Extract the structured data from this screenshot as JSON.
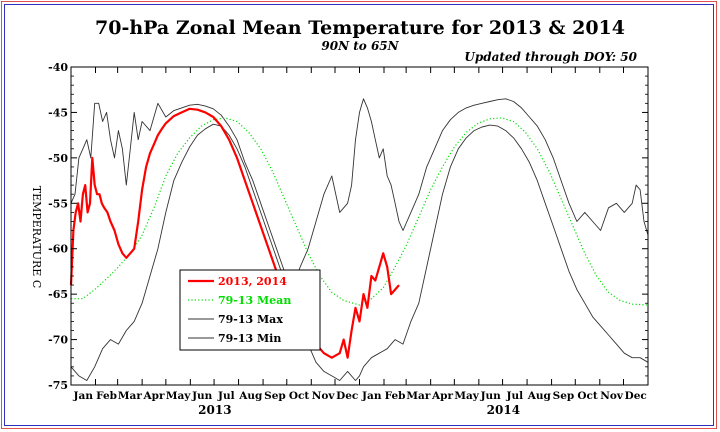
{
  "chart_data": {
    "type": "line",
    "title": "70-hPa Zonal Mean Temperature for 2013 & 2014",
    "subtitle": "90N to 65N",
    "note": "Updated through DOY:  50",
    "ylabel": "TEMPERATURE C",
    "ylim": [
      -75,
      -40
    ],
    "yticks": [
      "-40",
      "-45",
      "-50",
      "-55",
      "-60",
      "-65",
      "-70",
      "-75"
    ],
    "xlim": [
      0,
      730
    ],
    "month_labels": [
      "Jan",
      "Feb",
      "Mar",
      "Apr",
      "May",
      "Jun",
      "Jul",
      "Aug",
      "Sep",
      "Oct",
      "Nov",
      "Dec",
      "Jan",
      "Feb",
      "Mar",
      "Apr",
      "May",
      "Jun",
      "Jul",
      "Aug",
      "Sep",
      "Oct",
      "Nov",
      "Dec"
    ],
    "years": [
      {
        "label": "2013",
        "center": 182
      },
      {
        "label": "2014",
        "center": 547
      }
    ],
    "legend": {
      "position": "lower-left"
    },
    "series": [
      {
        "name": "2013, 2014",
        "color": "#ff0000",
        "style": "solid",
        "width": 2.2,
        "x": [
          0,
          3,
          6,
          9,
          12,
          15,
          18,
          21,
          24,
          27,
          30,
          33,
          36,
          39,
          42,
          46,
          50,
          55,
          60,
          65,
          70,
          75,
          80,
          85,
          90,
          95,
          100,
          105,
          110,
          115,
          120,
          125,
          130,
          135,
          140,
          145,
          150,
          160,
          170,
          180,
          190,
          200,
          210,
          220,
          230,
          240,
          250,
          260,
          270,
          280,
          290,
          300,
          310,
          320,
          330,
          340,
          345,
          350,
          355,
          360,
          365,
          370,
          375,
          380,
          385,
          390,
          395,
          400,
          405,
          410,
          415
        ],
        "y": [
          -64,
          -58,
          -56,
          -55,
          -57,
          -54,
          -53,
          -56,
          -55,
          -50,
          -53,
          -54,
          -54,
          -55,
          -55.5,
          -56,
          -57,
          -58,
          -59.5,
          -60.5,
          -61,
          -60.5,
          -60,
          -57,
          -53.5,
          -51,
          -49.5,
          -48.5,
          -47.5,
          -46.8,
          -46.2,
          -45.8,
          -45.4,
          -45.2,
          -45,
          -44.8,
          -44.6,
          -44.7,
          -45,
          -45.5,
          -46.5,
          -48,
          -50,
          -52.5,
          -55,
          -57.5,
          -60,
          -62.5,
          -64.5,
          -66.5,
          -68,
          -69.5,
          -70.5,
          -71.5,
          -72,
          -71.5,
          -70,
          -72,
          -69,
          -66.5,
          -68,
          -65,
          -66.5,
          -63,
          -63.5,
          -62,
          -60.5,
          -62,
          -65,
          -64.5,
          -64
        ]
      },
      {
        "name": "79-13 Mean",
        "color": "#00dd00",
        "style": "dotted",
        "width": 1.2,
        "x": [
          0,
          15,
          30,
          45,
          60,
          75,
          90,
          105,
          120,
          135,
          150,
          165,
          180,
          195,
          210,
          225,
          240,
          255,
          270,
          285,
          300,
          315,
          330,
          345,
          365,
          380,
          395,
          410,
          425,
          440,
          455,
          470,
          485,
          500,
          515,
          530,
          545,
          560,
          575,
          590,
          605,
          620,
          635,
          650,
          665,
          680,
          695,
          710,
          730
        ],
        "y": [
          -65.5,
          -65.5,
          -64.5,
          -63.3,
          -62,
          -60.5,
          -58.5,
          -55.5,
          -52,
          -49.5,
          -47.8,
          -46.5,
          -45.8,
          -45.6,
          -46,
          -47.2,
          -49,
          -51.5,
          -54.5,
          -57.5,
          -60.5,
          -63,
          -64.8,
          -65.7,
          -66.2,
          -65.5,
          -64.3,
          -62,
          -59.5,
          -56.5,
          -53.5,
          -51,
          -48.8,
          -47.2,
          -46.2,
          -45.7,
          -45.6,
          -46,
          -47.2,
          -49,
          -51.5,
          -54.5,
          -57.5,
          -60.5,
          -63,
          -64.8,
          -65.7,
          -66.1,
          -66.2
        ]
      },
      {
        "name": "79-13 Max",
        "color": "#333333",
        "style": "solid",
        "width": 0.9,
        "x": [
          0,
          5,
          10,
          15,
          20,
          25,
          30,
          35,
          40,
          45,
          50,
          55,
          60,
          65,
          70,
          75,
          80,
          85,
          90,
          100,
          110,
          120,
          130,
          140,
          150,
          160,
          170,
          180,
          190,
          200,
          210,
          220,
          230,
          240,
          250,
          260,
          270,
          280,
          290,
          300,
          310,
          320,
          330,
          340,
          350,
          355,
          360,
          365,
          370,
          375,
          380,
          385,
          390,
          395,
          400,
          405,
          410,
          415,
          420,
          430,
          440,
          450,
          460,
          470,
          480,
          490,
          500,
          510,
          520,
          530,
          540,
          550,
          560,
          570,
          580,
          590,
          600,
          610,
          620,
          630,
          640,
          650,
          660,
          670,
          680,
          690,
          700,
          710,
          715,
          720,
          725,
          730
        ],
        "y": [
          -55,
          -54,
          -50,
          -49,
          -48,
          -50,
          -44,
          -44,
          -46,
          -45,
          -48,
          -50,
          -47,
          -49,
          -53,
          -49,
          -45,
          -48,
          -46,
          -47,
          -44,
          -45.5,
          -44.8,
          -44.5,
          -44.2,
          -44.1,
          -44.3,
          -44.6,
          -45.3,
          -46.5,
          -48,
          -50.5,
          -52.5,
          -55,
          -57.5,
          -60,
          -62.5,
          -64.5,
          -62,
          -60,
          -57,
          -54,
          -52,
          -56,
          -55,
          -53,
          -48,
          -45,
          -43.5,
          -44.5,
          -46,
          -48,
          -50,
          -49,
          -52,
          -53,
          -55,
          -57,
          -58,
          -56,
          -54,
          -51,
          -49,
          -47,
          -45.8,
          -45,
          -44.5,
          -44.2,
          -44,
          -43.8,
          -43.6,
          -43.5,
          -43.8,
          -44.5,
          -45.5,
          -46.5,
          -48,
          -50,
          -52.5,
          -55,
          -57,
          -56,
          -57,
          -58,
          -55.5,
          -55,
          -56,
          -55,
          -53,
          -53.5,
          -57,
          -58.5
        ]
      },
      {
        "name": "79-13 Min",
        "color": "#333333",
        "style": "solid",
        "width": 0.9,
        "x": [
          0,
          10,
          20,
          30,
          40,
          50,
          60,
          70,
          80,
          90,
          100,
          110,
          120,
          130,
          140,
          150,
          160,
          170,
          180,
          190,
          200,
          210,
          220,
          230,
          240,
          250,
          260,
          270,
          280,
          290,
          300,
          310,
          320,
          330,
          340,
          350,
          360,
          365,
          370,
          380,
          390,
          400,
          410,
          420,
          430,
          440,
          450,
          460,
          470,
          480,
          490,
          500,
          510,
          520,
          530,
          540,
          550,
          560,
          570,
          580,
          590,
          600,
          610,
          620,
          630,
          640,
          650,
          660,
          670,
          680,
          690,
          700,
          710,
          720,
          730
        ],
        "y": [
          -73,
          -74,
          -74.5,
          -73,
          -71,
          -70,
          -70.5,
          -69,
          -68,
          -66,
          -63,
          -60,
          -56,
          -52.5,
          -50.5,
          -48.8,
          -47.5,
          -46.8,
          -46.3,
          -46.5,
          -47.5,
          -49,
          -51,
          -53.5,
          -56,
          -58.5,
          -61,
          -63.5,
          -66,
          -68.5,
          -70.5,
          -72.5,
          -73.5,
          -74,
          -74.5,
          -73.5,
          -74.5,
          -74,
          -73,
          -72,
          -71.5,
          -71,
          -70,
          -70.5,
          -68,
          -66,
          -62,
          -58,
          -54,
          -51,
          -49,
          -47.8,
          -47,
          -46.6,
          -46.4,
          -46.5,
          -47,
          -47.8,
          -49,
          -50.5,
          -52.5,
          -55,
          -57.5,
          -60,
          -62.5,
          -64.5,
          -66,
          -67.5,
          -68.5,
          -69.5,
          -70.5,
          -71.5,
          -72,
          -72,
          -72.5
        ]
      }
    ]
  }
}
